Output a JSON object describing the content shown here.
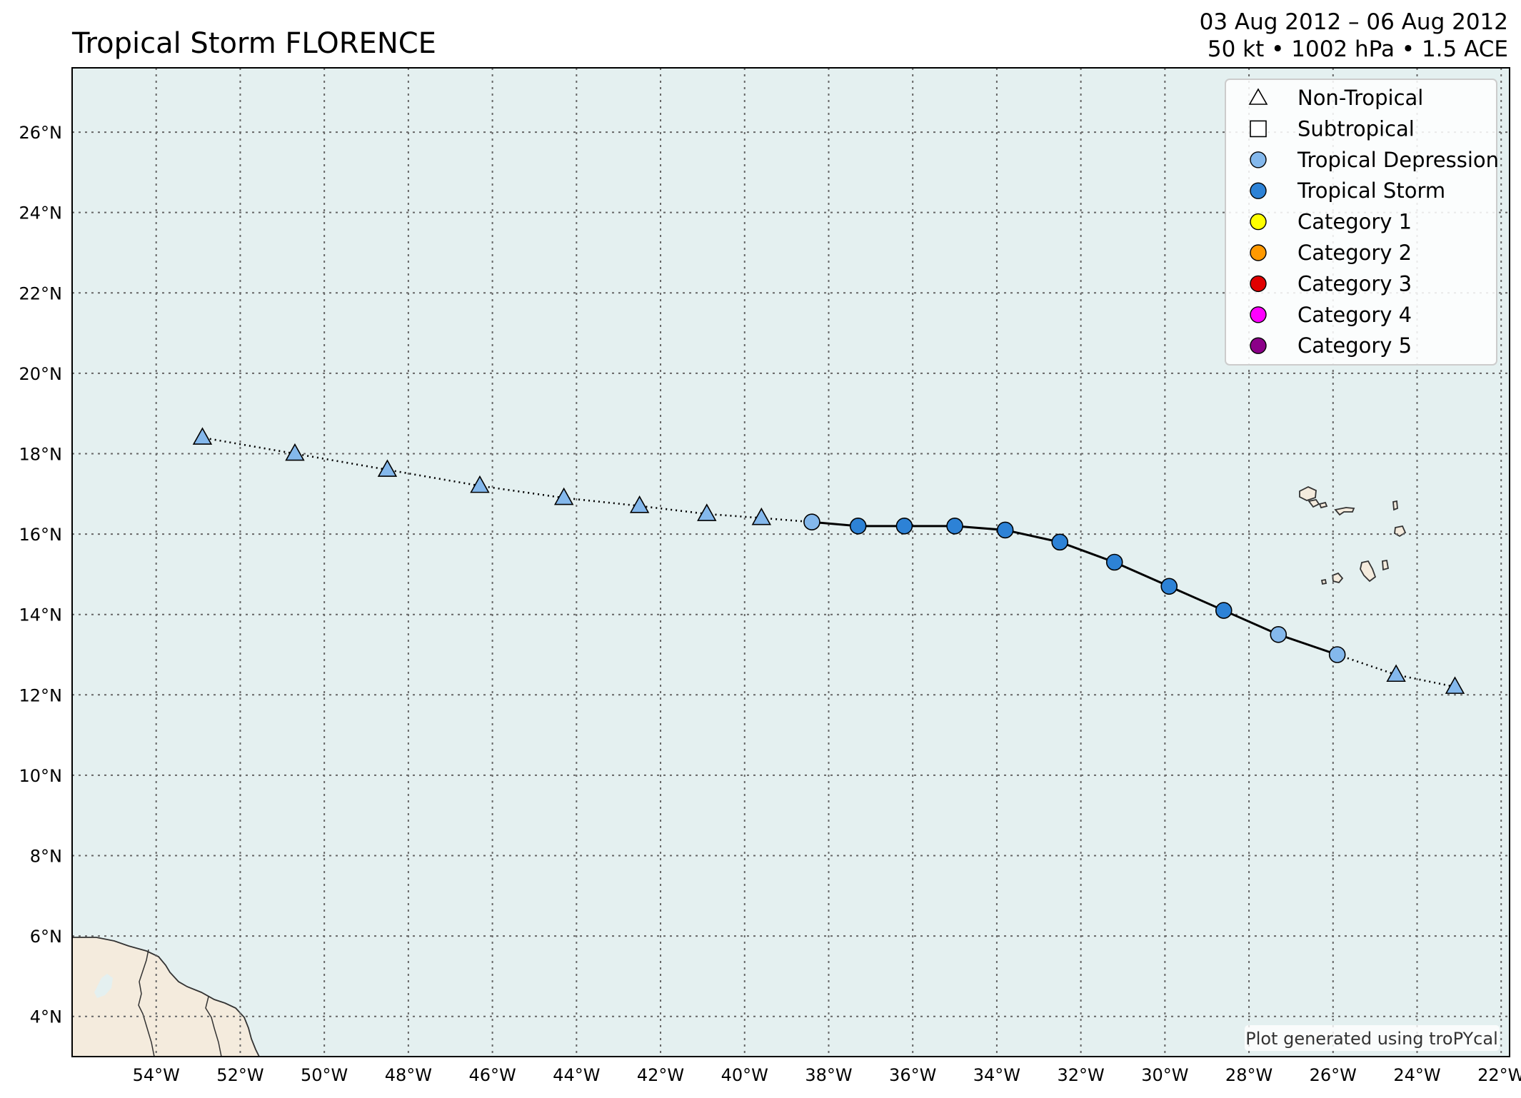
{
  "header": {
    "title": "Tropical Storm FLORENCE",
    "date_range": "03 Aug 2012 – 06 Aug 2012",
    "stats": "50 kt • 1002 hPa • 1.5 ACE"
  },
  "map": {
    "extent": {
      "lon": [
        -56,
        -21.8
      ],
      "lat": [
        3.0,
        27.6
      ]
    },
    "colors": {
      "ocean": "#e4f0f0",
      "land": "#f4ebdd",
      "coast": "#333333",
      "grid": "#666666",
      "track": "#000000"
    },
    "lon_ticks": [
      {
        "value": -54,
        "label": "54°W"
      },
      {
        "value": -52,
        "label": "52°W"
      },
      {
        "value": -50,
        "label": "50°W"
      },
      {
        "value": -48,
        "label": "48°W"
      },
      {
        "value": -46,
        "label": "46°W"
      },
      {
        "value": -44,
        "label": "44°W"
      },
      {
        "value": -42,
        "label": "42°W"
      },
      {
        "value": -40,
        "label": "40°W"
      },
      {
        "value": -38,
        "label": "38°W"
      },
      {
        "value": -36,
        "label": "36°W"
      },
      {
        "value": -34,
        "label": "34°W"
      },
      {
        "value": -32,
        "label": "32°W"
      },
      {
        "value": -30,
        "label": "30°W"
      },
      {
        "value": -28,
        "label": "28°W"
      },
      {
        "value": -26,
        "label": "26°W"
      },
      {
        "value": -24,
        "label": "24°W"
      },
      {
        "value": -22,
        "label": "22°W"
      }
    ],
    "lat_ticks": [
      {
        "value": 4,
        "label": "4°N"
      },
      {
        "value": 6,
        "label": "6°N"
      },
      {
        "value": 8,
        "label": "8°N"
      },
      {
        "value": 10,
        "label": "10°N"
      },
      {
        "value": 12,
        "label": "12°N"
      },
      {
        "value": 14,
        "label": "14°N"
      },
      {
        "value": 16,
        "label": "16°N"
      },
      {
        "value": 18,
        "label": "18°N"
      },
      {
        "value": 20,
        "label": "20°N"
      },
      {
        "value": 22,
        "label": "22°N"
      },
      {
        "value": 24,
        "label": "24°N"
      },
      {
        "value": 26,
        "label": "26°N"
      }
    ],
    "track": [
      {
        "lon": -23.1,
        "lat": 12.2,
        "type": "NT"
      },
      {
        "lon": -24.5,
        "lat": 12.5,
        "type": "NT"
      },
      {
        "lon": -25.9,
        "lat": 13.0,
        "type": "TD"
      },
      {
        "lon": -27.3,
        "lat": 13.5,
        "type": "TD"
      },
      {
        "lon": -28.6,
        "lat": 14.1,
        "type": "TS"
      },
      {
        "lon": -29.9,
        "lat": 14.7,
        "type": "TS"
      },
      {
        "lon": -31.2,
        "lat": 15.3,
        "type": "TS"
      },
      {
        "lon": -32.5,
        "lat": 15.8,
        "type": "TS"
      },
      {
        "lon": -33.8,
        "lat": 16.1,
        "type": "TS"
      },
      {
        "lon": -35.0,
        "lat": 16.2,
        "type": "TS"
      },
      {
        "lon": -36.2,
        "lat": 16.2,
        "type": "TS"
      },
      {
        "lon": -37.3,
        "lat": 16.2,
        "type": "TS"
      },
      {
        "lon": -38.4,
        "lat": 16.3,
        "type": "TD"
      },
      {
        "lon": -39.6,
        "lat": 16.4,
        "type": "NT"
      },
      {
        "lon": -40.9,
        "lat": 16.5,
        "type": "NT"
      },
      {
        "lon": -42.5,
        "lat": 16.7,
        "type": "NT"
      },
      {
        "lon": -44.3,
        "lat": 16.9,
        "type": "NT"
      },
      {
        "lon": -46.3,
        "lat": 17.2,
        "type": "NT"
      },
      {
        "lon": -48.5,
        "lat": 17.6,
        "type": "NT"
      },
      {
        "lon": -50.7,
        "lat": 18.0,
        "type": "NT"
      },
      {
        "lon": -52.9,
        "lat": 18.4,
        "type": "NT"
      }
    ],
    "point_colors": {
      "TD": "#84b8ec",
      "TS": "#2d82d6",
      "NT": "#84b8ec"
    }
  },
  "legend": {
    "placement": "top-right",
    "items": [
      {
        "label": "Non-Tropical",
        "symbol": "triangle",
        "color": "#ffffff"
      },
      {
        "label": "Subtropical",
        "symbol": "square",
        "color": "#ffffff"
      },
      {
        "label": "Tropical Depression",
        "symbol": "circle",
        "color": "#84b8ec"
      },
      {
        "label": "Tropical Storm",
        "symbol": "circle",
        "color": "#2d82d6"
      },
      {
        "label": "Category 1",
        "symbol": "circle",
        "color": "#ffff00"
      },
      {
        "label": "Category 2",
        "symbol": "circle",
        "color": "#ff9900"
      },
      {
        "label": "Category 3",
        "symbol": "circle",
        "color": "#e00000"
      },
      {
        "label": "Category 4",
        "symbol": "circle",
        "color": "#ff00ff"
      },
      {
        "label": "Category 5",
        "symbol": "circle",
        "color": "#8b0088"
      }
    ]
  },
  "credit": "Plot generated using troPYcal"
}
